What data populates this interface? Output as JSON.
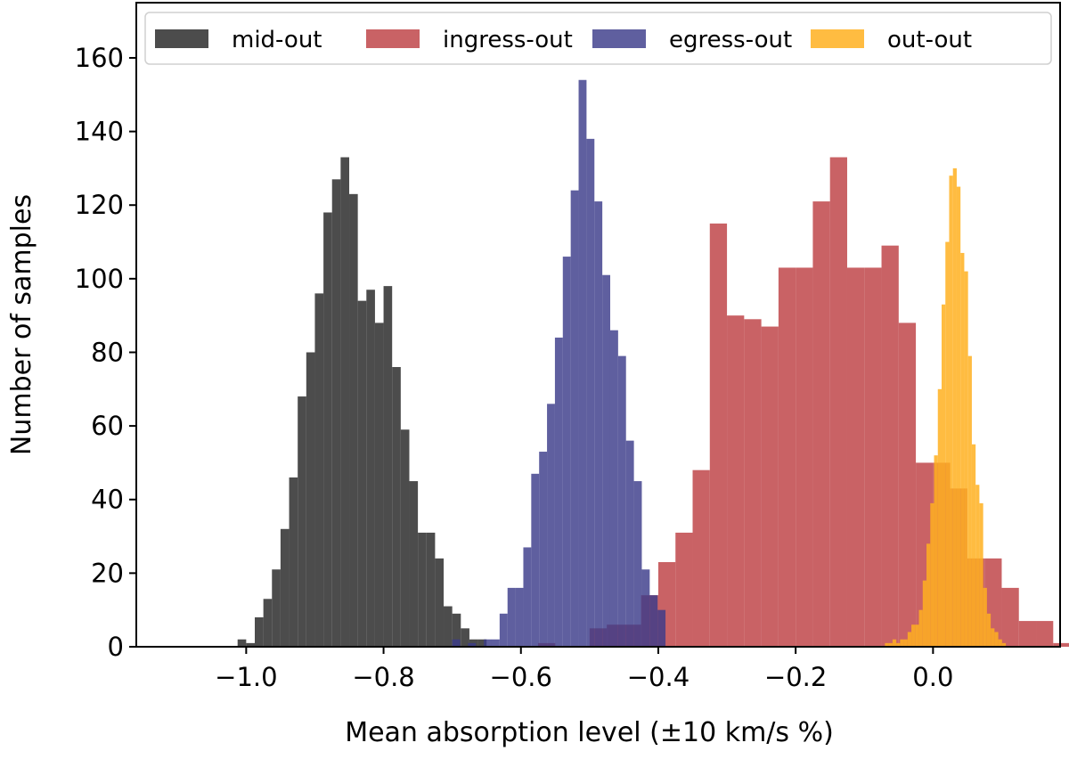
{
  "chart_data": {
    "type": "histogram",
    "title": "",
    "xlabel": "Mean absorption level (±10 km/s %)",
    "ylabel": "Number of samples",
    "xlim": [
      -1.16,
      0.185
    ],
    "ylim": [
      0,
      175
    ],
    "x_ticks": [
      -1.0,
      -0.8,
      -0.6,
      -0.4,
      -0.2,
      0.0
    ],
    "x_tick_labels": [
      "−1.0",
      "−0.8",
      "−0.6",
      "−0.4",
      "−0.2",
      "0.0"
    ],
    "y_ticks": [
      0,
      20,
      40,
      60,
      80,
      100,
      120,
      140,
      160
    ],
    "y_tick_labels": [
      "0",
      "20",
      "40",
      "60",
      "80",
      "100",
      "120",
      "140",
      "160"
    ],
    "grid": false,
    "legend_position": "top",
    "series": [
      {
        "name": "mid-out",
        "color": "#333333",
        "opacity": 0.88,
        "bin_start": -1.0125,
        "bin_width": 0.0125,
        "counts": [
          2,
          1,
          8,
          13,
          21,
          32,
          46,
          68,
          80,
          96,
          118,
          127,
          133,
          123,
          94,
          97,
          88,
          98,
          76,
          59,
          45,
          31,
          31,
          24,
          11,
          9,
          5,
          2,
          2
        ]
      },
      {
        "name": "ingress-out",
        "color": "#c0474a",
        "opacity": 0.85,
        "bin_start": -0.575,
        "bin_width": 0.025,
        "counts": [
          1,
          0,
          0,
          5,
          6,
          6,
          14,
          23,
          31,
          48,
          115,
          90,
          89,
          87,
          103,
          103,
          121,
          133,
          103,
          103,
          109,
          88,
          50,
          50,
          43,
          24,
          24,
          16,
          7,
          7,
          1
        ]
      },
      {
        "name": "egress-out",
        "color": "#3c3c8a",
        "opacity": 0.82,
        "bin_start": -0.7,
        "bin_width": 0.0115,
        "counts": [
          2,
          0,
          1,
          0,
          2,
          2,
          9,
          16,
          16,
          27,
          47,
          53,
          66,
          84,
          106,
          124,
          154,
          138,
          121,
          101,
          86,
          79,
          56,
          45,
          21,
          14,
          10
        ]
      },
      {
        "name": "out-out",
        "color": "#ffb020",
        "opacity": 0.85,
        "bin_start": -0.07,
        "bin_width": 0.0055,
        "counts": [
          1,
          1,
          2,
          1,
          2,
          2,
          4,
          6,
          6,
          10,
          18,
          28,
          39,
          52,
          70,
          93,
          110,
          128,
          130,
          125,
          107,
          102,
          79,
          55,
          44,
          39,
          16,
          9,
          5,
          4,
          2,
          1
        ]
      }
    ]
  }
}
